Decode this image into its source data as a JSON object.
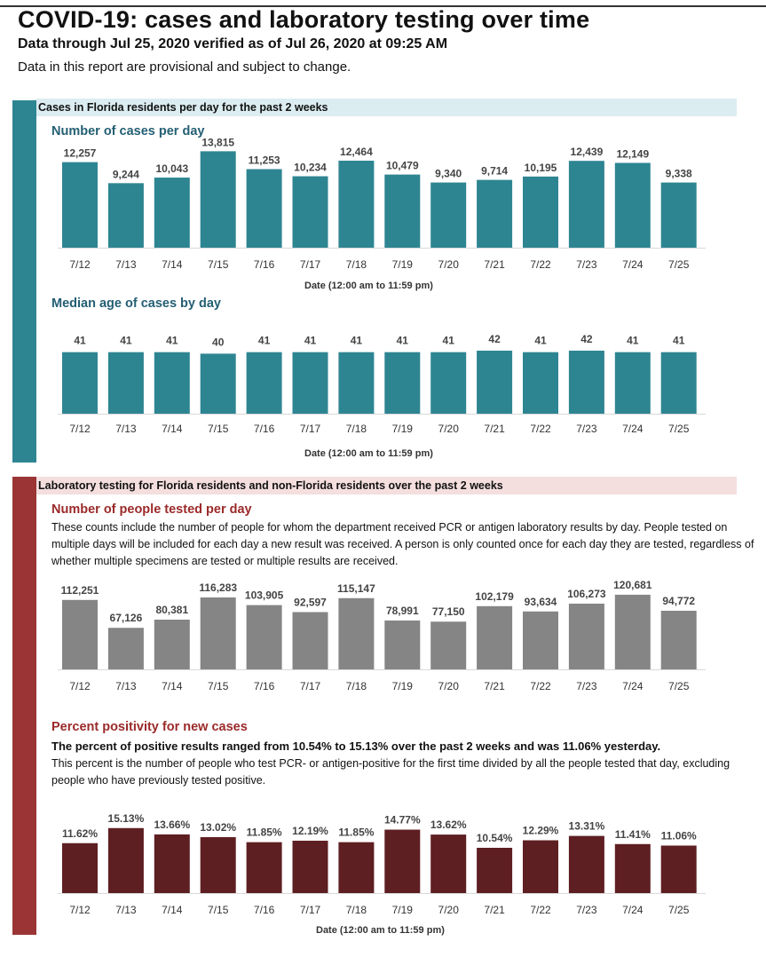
{
  "header": {
    "title": "COVID-19: cases and laboratory testing over time",
    "subtitle": "Data through Jul 25, 2020 verified as of Jul 26, 2020 at 09:25 AM",
    "note": "Data in this report are provisional and subject to change."
  },
  "colors": {
    "teal_sidebar": "#2e8592",
    "teal_bar": "#2e8592",
    "teal_header_bg": "#dcedf1",
    "red_sidebar": "#9b3535",
    "red_header_bg": "#f4dede",
    "gray_bar": "#858585",
    "maroon_bar": "#5e1f22"
  },
  "sections": {
    "cases": {
      "header": "Cases in Florida residents per day for the past 2 weeks"
    },
    "testing": {
      "header": "Laboratory testing for Florida residents and non-Florida residents over the past 2 weeks",
      "tested_description": "These counts include the number of people for whom the department received PCR or antigen laboratory results by day. People tested on multiple days will be included for each day a new result was received. A person is only counted once for each day they are tested, regardless of whether multiple specimens are tested or multiple results are received.",
      "positivity_summary": "The percent of positive results ranged from 10.54% to 15.13% over the past 2 weeks and was 11.06% yesterday.",
      "positivity_description": "This percent is the number of people who test PCR- or antigen-positive for the first time divided by all the people tested that day, excluding people who have previously tested positive."
    }
  },
  "chart_data": [
    {
      "id": "cases",
      "type": "bar",
      "title": "Number of cases per day",
      "xlabel": "Date (12:00 am to 11:59 pm)",
      "categories": [
        "7/12",
        "7/13",
        "7/14",
        "7/15",
        "7/16",
        "7/17",
        "7/18",
        "7/19",
        "7/20",
        "7/21",
        "7/22",
        "7/23",
        "7/24",
        "7/25"
      ],
      "values": [
        12257,
        9244,
        10043,
        13815,
        11253,
        10234,
        12464,
        10479,
        9340,
        9714,
        10195,
        12439,
        12149,
        9338
      ],
      "labels": [
        "12,257",
        "9,244",
        "10,043",
        "13,815",
        "11,253",
        "10,234",
        "12,464",
        "10,479",
        "9,340",
        "9,714",
        "10,195",
        "12,439",
        "12,149",
        "9,338"
      ],
      "ylim": [
        0,
        14500
      ]
    },
    {
      "id": "age",
      "type": "bar",
      "title": "Median age of cases by day",
      "xlabel": "Date (12:00 am to 11:59 pm)",
      "categories": [
        "7/12",
        "7/13",
        "7/14",
        "7/15",
        "7/16",
        "7/17",
        "7/18",
        "7/19",
        "7/20",
        "7/21",
        "7/22",
        "7/23",
        "7/24",
        "7/25"
      ],
      "values": [
        41,
        41,
        41,
        40,
        41,
        41,
        41,
        41,
        41,
        42,
        41,
        42,
        41,
        41
      ],
      "labels": [
        "41",
        "41",
        "41",
        "40",
        "41",
        "41",
        "41",
        "41",
        "41",
        "42",
        "41",
        "42",
        "41",
        "41"
      ],
      "ylim": [
        0,
        42
      ]
    },
    {
      "id": "tested",
      "type": "bar",
      "title": "Number of people tested per day",
      "xlabel": "",
      "categories": [
        "7/12",
        "7/13",
        "7/14",
        "7/15",
        "7/16",
        "7/17",
        "7/18",
        "7/19",
        "7/20",
        "7/21",
        "7/22",
        "7/23",
        "7/24",
        "7/25"
      ],
      "values": [
        112251,
        67126,
        80381,
        116283,
        103905,
        92597,
        115147,
        78991,
        77150,
        102179,
        93634,
        106273,
        120681,
        94772
      ],
      "labels": [
        "112,251",
        "67,126",
        "80,381",
        "116,283",
        "103,905",
        "92,597",
        "115,147",
        "78,991",
        "77,150",
        "102,179",
        "93,634",
        "106,273",
        "120,681",
        "94,772"
      ],
      "ylim": [
        0,
        122000
      ]
    },
    {
      "id": "positivity",
      "type": "bar",
      "title": "Percent positivity for new cases",
      "xlabel": "Date (12:00 am to 11:59 pm)",
      "categories": [
        "7/12",
        "7/13",
        "7/14",
        "7/15",
        "7/16",
        "7/17",
        "7/18",
        "7/19",
        "7/20",
        "7/21",
        "7/22",
        "7/23",
        "7/24",
        "7/25"
      ],
      "values": [
        11.62,
        15.13,
        13.66,
        13.02,
        11.85,
        12.19,
        11.85,
        14.77,
        13.62,
        10.54,
        12.29,
        13.31,
        11.41,
        11.06
      ],
      "labels": [
        "11.62%",
        "15.13%",
        "13.66%",
        "13.02%",
        "11.85%",
        "12.19%",
        "11.85%",
        "14.77%",
        "13.62%",
        "10.54%",
        "12.29%",
        "13.31%",
        "11.41%",
        "11.06%"
      ],
      "ylim": [
        0,
        15.5
      ]
    }
  ]
}
